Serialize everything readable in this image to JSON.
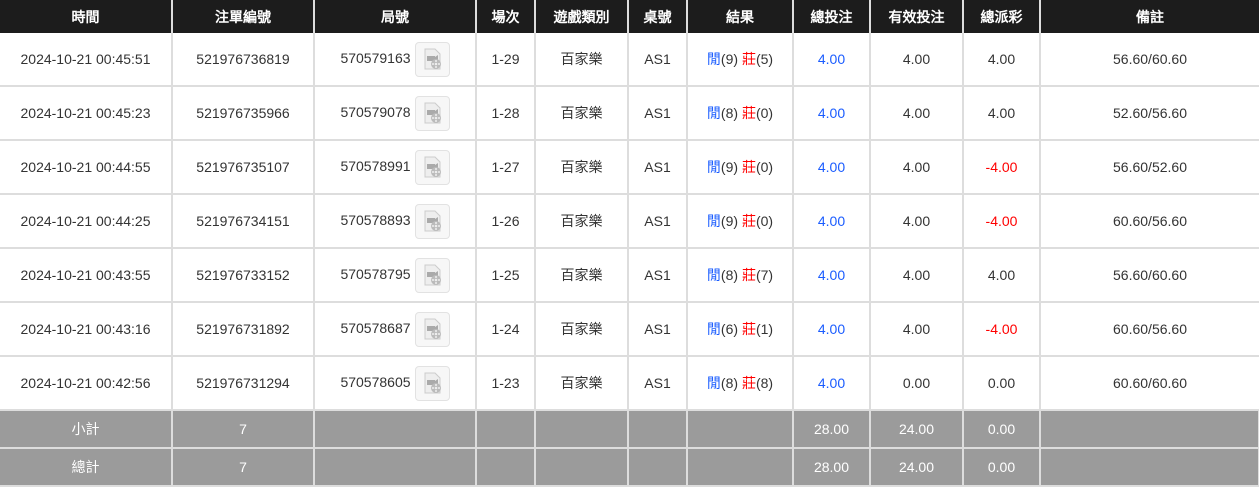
{
  "headers": [
    "時間",
    "注單編號",
    "局號",
    "場次",
    "遊戲類別",
    "桌號",
    "結果",
    "總投注",
    "有效投注",
    "總派彩",
    "備註"
  ],
  "rows": [
    {
      "time": "2024-10-21 00:45:51",
      "bet_id": "521976736819",
      "round": "570579163",
      "session": "1-29",
      "game": "百家樂",
      "table": "AS1",
      "player_label": "閒",
      "player": "(9)",
      "banker_label": "莊",
      "banker": "(5)",
      "total": "4.00",
      "valid": "4.00",
      "payout": "4.00",
      "payout_negative": false,
      "note": "56.60/60.60"
    },
    {
      "time": "2024-10-21 00:45:23",
      "bet_id": "521976735966",
      "round": "570579078",
      "session": "1-28",
      "game": "百家樂",
      "table": "AS1",
      "player_label": "閒",
      "player": "(8)",
      "banker_label": "莊",
      "banker": "(0)",
      "total": "4.00",
      "valid": "4.00",
      "payout": "4.00",
      "payout_negative": false,
      "note": "52.60/56.60"
    },
    {
      "time": "2024-10-21 00:44:55",
      "bet_id": "521976735107",
      "round": "570578991",
      "session": "1-27",
      "game": "百家樂",
      "table": "AS1",
      "player_label": "閒",
      "player": "(9)",
      "banker_label": "莊",
      "banker": "(0)",
      "total": "4.00",
      "valid": "4.00",
      "payout": "-4.00",
      "payout_negative": true,
      "note": "56.60/52.60"
    },
    {
      "time": "2024-10-21 00:44:25",
      "bet_id": "521976734151",
      "round": "570578893",
      "session": "1-26",
      "game": "百家樂",
      "table": "AS1",
      "player_label": "閒",
      "player": "(9)",
      "banker_label": "莊",
      "banker": "(0)",
      "total": "4.00",
      "valid": "4.00",
      "payout": "-4.00",
      "payout_negative": true,
      "note": "60.60/56.60"
    },
    {
      "time": "2024-10-21 00:43:55",
      "bet_id": "521976733152",
      "round": "570578795",
      "session": "1-25",
      "game": "百家樂",
      "table": "AS1",
      "player_label": "閒",
      "player": "(8)",
      "banker_label": "莊",
      "banker": "(7)",
      "total": "4.00",
      "valid": "4.00",
      "payout": "4.00",
      "payout_negative": false,
      "note": "56.60/60.60"
    },
    {
      "time": "2024-10-21 00:43:16",
      "bet_id": "521976731892",
      "round": "570578687",
      "session": "1-24",
      "game": "百家樂",
      "table": "AS1",
      "player_label": "閒",
      "player": "(6)",
      "banker_label": "莊",
      "banker": "(1)",
      "total": "4.00",
      "valid": "4.00",
      "payout": "-4.00",
      "payout_negative": true,
      "note": "60.60/56.60"
    },
    {
      "time": "2024-10-21 00:42:56",
      "bet_id": "521976731294",
      "round": "570578605",
      "session": "1-23",
      "game": "百家樂",
      "table": "AS1",
      "player_label": "閒",
      "player": "(8)",
      "banker_label": "莊",
      "banker": "(8)",
      "total": "4.00",
      "valid": "0.00",
      "payout": "0.00",
      "payout_negative": false,
      "note": "60.60/60.60"
    }
  ],
  "subtotal": {
    "label": "小計",
    "count": "7",
    "total": "28.00",
    "valid": "24.00",
    "payout": "0.00"
  },
  "grand_total": {
    "label": "總計",
    "count": "7",
    "total": "28.00",
    "valid": "24.00",
    "payout": "0.00"
  },
  "colors": {
    "header_bg": "#1c1c1c",
    "total_blue": "#1a5cff",
    "negative_red": "#ff0000",
    "summary_bg": "#9b9b9b"
  }
}
